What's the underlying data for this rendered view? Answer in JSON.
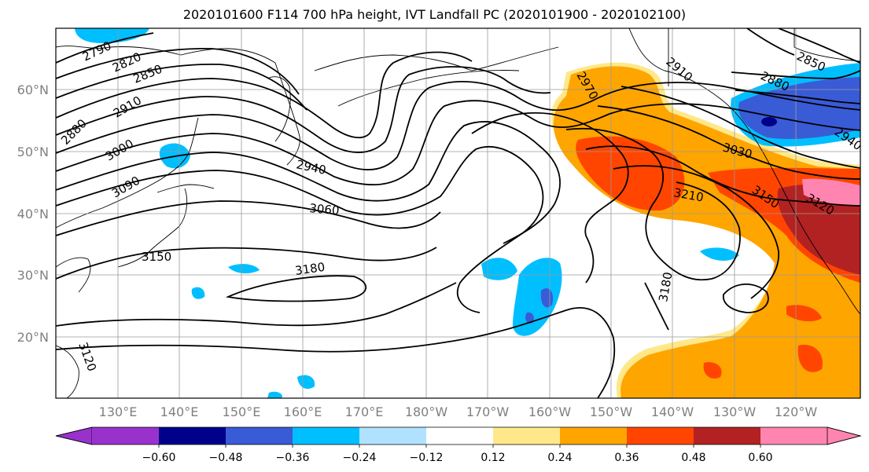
{
  "title": "2020101600 F114 700 hPa height, IVT Landfall PC (2020101900 - 2020102100)",
  "map": {
    "lat_labels": [
      "60°N",
      "50°N",
      "40°N",
      "30°N",
      "20°N"
    ],
    "lon_labels": [
      "130°E",
      "140°E",
      "150°E",
      "160°E",
      "170°E",
      "180°W",
      "170°W",
      "160°W",
      "150°W",
      "140°W",
      "130°W",
      "120°W"
    ],
    "contour_labels": [
      "2790",
      "2820",
      "2850",
      "2880",
      "2910",
      "3000",
      "3090",
      "3150",
      "3180",
      "3120",
      "2940",
      "3060",
      "2970",
      "2910",
      "2880",
      "2850",
      "3030",
      "3210",
      "3150",
      "3120",
      "3180",
      "2940"
    ]
  },
  "colorbar": {
    "colors": [
      "#9932cc",
      "#00008b",
      "#3a5bd6",
      "#00bfff",
      "#b0e2ff",
      "#ffffff",
      "#ffffff",
      "#ffe88a",
      "#ffa500",
      "#ff4500",
      "#b22222",
      "#ff85b0"
    ],
    "tick_labels": [
      "−0.60",
      "−0.48",
      "−0.36",
      "−0.24",
      "−0.12",
      "0.12",
      "0.24",
      "0.36",
      "0.48",
      "0.60"
    ]
  }
}
